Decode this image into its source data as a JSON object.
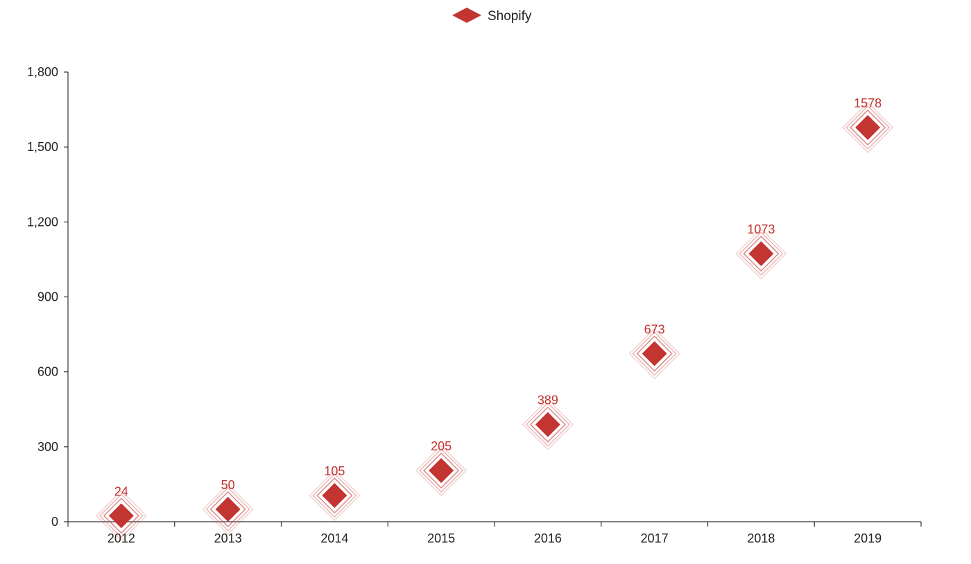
{
  "chart_data": {
    "type": "scatter",
    "categories": [
      "2012",
      "2013",
      "2014",
      "2015",
      "2016",
      "2017",
      "2018",
      "2019"
    ],
    "series": [
      {
        "name": "Shopify",
        "values": [
          24,
          50,
          105,
          205,
          389,
          673,
          1073,
          1578
        ],
        "color": "#c23531",
        "symbol": "diamond"
      }
    ],
    "y_ticks": [
      0,
      300,
      600,
      900,
      1200,
      1500,
      1800
    ],
    "y_tick_labels": [
      "0",
      "300",
      "600",
      "900",
      "1,200",
      "1,500",
      "1,800"
    ],
    "ylim": [
      0,
      1800
    ],
    "title": "",
    "xlabel": "",
    "ylabel": "",
    "grid": false,
    "legend_position": "top-center",
    "data_labels": true,
    "effect": "ripple"
  }
}
